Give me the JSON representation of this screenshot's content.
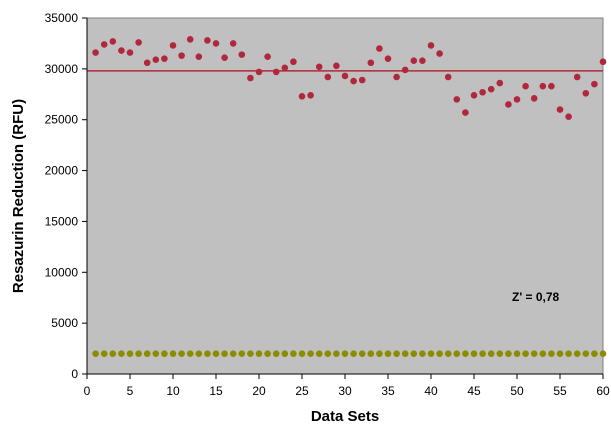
{
  "chart_data": {
    "type": "scatter",
    "title": "",
    "xlabel": "Data Sets",
    "ylabel": "Resazurin Reduction (RFU)",
    "xlim": [
      0,
      60
    ],
    "ylim": [
      0,
      35000
    ],
    "xticks": [
      0,
      5,
      10,
      15,
      20,
      25,
      30,
      35,
      40,
      45,
      50,
      55,
      60
    ],
    "yticks": [
      0,
      5000,
      10000,
      15000,
      20000,
      25000,
      30000,
      35000
    ],
    "grid": false,
    "plot_background": "#c0c0c0",
    "annotation": "Z' = 0,78",
    "mean_line": {
      "y": 29800,
      "color": "#b0283c"
    },
    "series": [
      {
        "color": "#b0283c",
        "x": [
          1,
          2,
          3,
          4,
          5,
          6,
          7,
          8,
          9,
          10,
          11,
          12,
          13,
          14,
          15,
          16,
          17,
          18,
          19,
          20,
          21,
          22,
          23,
          24,
          25,
          26,
          27,
          28,
          29,
          30,
          31,
          32,
          33,
          34,
          35,
          36,
          37,
          38,
          39,
          40,
          41,
          42,
          43,
          44,
          45,
          46,
          47,
          48,
          49,
          50,
          51,
          52,
          53,
          54,
          55,
          56,
          57,
          58,
          59,
          60
        ],
        "y": [
          31600,
          32400,
          32700,
          31800,
          31600,
          32600,
          30600,
          30900,
          31000,
          32300,
          31300,
          32900,
          31200,
          32800,
          32500,
          31100,
          32500,
          31400,
          29100,
          29700,
          31200,
          29700,
          30100,
          30700,
          27300,
          27400,
          30200,
          29200,
          30300,
          29300,
          28800,
          28900,
          30600,
          32000,
          31000,
          29200,
          29900,
          30800,
          30800,
          32300,
          31500,
          29200,
          27000,
          25700,
          27400,
          27700,
          28000,
          28600,
          26500,
          27000,
          28300,
          27100,
          28300,
          28300,
          26000,
          25300,
          29200,
          27600,
          28500,
          30700
        ]
      },
      {
        "color": "#8c8c00",
        "x": [
          1,
          2,
          3,
          4,
          5,
          6,
          7,
          8,
          9,
          10,
          11,
          12,
          13,
          14,
          15,
          16,
          17,
          18,
          19,
          20,
          21,
          22,
          23,
          24,
          25,
          26,
          27,
          28,
          29,
          30,
          31,
          32,
          33,
          34,
          35,
          36,
          37,
          38,
          39,
          40,
          41,
          42,
          43,
          44,
          45,
          46,
          47,
          48,
          49,
          50,
          51,
          52,
          53,
          54,
          55,
          56,
          57,
          58,
          59,
          60
        ],
        "y": [
          2000,
          2000,
          2000,
          2000,
          2000,
          2000,
          2000,
          2000,
          2000,
          2000,
          2000,
          2000,
          2000,
          2000,
          2000,
          2000,
          2000,
          2000,
          2000,
          2000,
          2000,
          2000,
          2000,
          2000,
          2000,
          2000,
          2000,
          2000,
          2000,
          2000,
          2000,
          2000,
          2000,
          2000,
          2000,
          2000,
          2000,
          2000,
          2000,
          2000,
          2000,
          2000,
          2000,
          2000,
          2000,
          2000,
          2000,
          2000,
          2000,
          2000,
          2000,
          2000,
          2000,
          2000,
          2000,
          2000,
          2000,
          2000,
          2000,
          2000
        ]
      }
    ]
  }
}
